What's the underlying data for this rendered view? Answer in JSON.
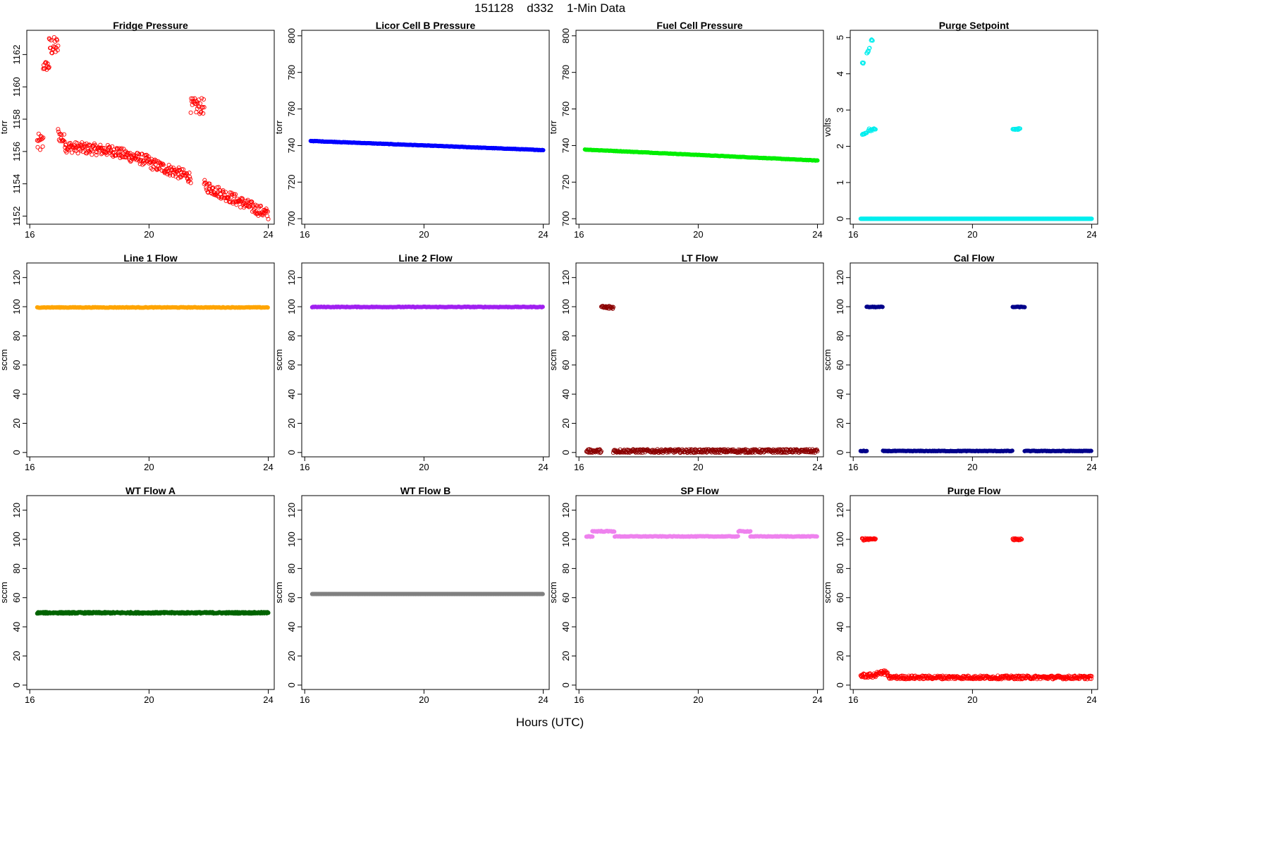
{
  "page": {
    "title": "151128    d332    1-Min Data",
    "x_axis_label": "Hours (UTC)"
  },
  "chart_data": [
    {
      "type": "scatter",
      "title": "Fridge Pressure",
      "ylabel": "torr",
      "color": "#ff0000",
      "filled": false,
      "xlim": [
        15.9,
        24.2
      ],
      "ylim": [
        1151.5,
        1163.5
      ],
      "xticks": [
        16,
        20,
        24
      ],
      "yticks": [
        1152,
        1154,
        1156,
        1158,
        1160,
        1162
      ],
      "segments": [
        {
          "x0": 16.25,
          "x1": 16.45,
          "y": 1156.5,
          "noise": 0.6
        },
        {
          "x0": 16.45,
          "x1": 16.65,
          "y": 1161.3,
          "noise": 0.3
        },
        {
          "x0": 16.65,
          "x1": 16.95,
          "y": 1162.5,
          "noise": 0.6
        },
        {
          "x0": 16.95,
          "x1": 17.2,
          "y0": 1157.1,
          "y1": 1156.6,
          "noise": 0.4
        },
        {
          "x0": 17.2,
          "x1": 19.0,
          "y0": 1156.3,
          "y1": 1156.0,
          "noise": 0.35
        },
        {
          "x0": 19.0,
          "x1": 20.0,
          "y0": 1155.9,
          "y1": 1155.4,
          "noise": 0.35
        },
        {
          "x0": 20.0,
          "x1": 21.4,
          "y0": 1155.3,
          "y1": 1154.4,
          "noise": 0.35
        },
        {
          "x0": 21.4,
          "x1": 21.85,
          "y": 1158.8,
          "noise": 0.5
        },
        {
          "x0": 21.85,
          "x1": 24.0,
          "y0": 1153.9,
          "y1": 1152.1,
          "noise": 0.35
        }
      ]
    },
    {
      "type": "scatter",
      "title": "Licor Cell B Pressure",
      "ylabel": "torr",
      "color": "#0000ff",
      "filled": true,
      "xlim": [
        15.9,
        24.2
      ],
      "ylim": [
        697,
        803
      ],
      "xticks": [
        16,
        20,
        24
      ],
      "yticks": [
        700,
        720,
        740,
        760,
        780,
        800
      ],
      "segments": [
        {
          "x0": 16.2,
          "x1": 24.0,
          "y0": 742.5,
          "y1": 737.5,
          "noise": 0.1
        }
      ]
    },
    {
      "type": "scatter",
      "title": "Fuel Cell Pressure",
      "ylabel": "torr",
      "color": "#00ee00",
      "filled": true,
      "xlim": [
        15.9,
        24.2
      ],
      "ylim": [
        697,
        803
      ],
      "xticks": [
        16,
        20,
        24
      ],
      "yticks": [
        700,
        720,
        740,
        760,
        780,
        800
      ],
      "segments": [
        {
          "x0": 16.2,
          "x1": 24.0,
          "y0": 737.8,
          "y1": 731.8,
          "noise": 0.1
        }
      ]
    },
    {
      "type": "scatter",
      "title": "Purge Setpoint",
      "ylabel": "volts",
      "color": "#00eeee",
      "filled": false,
      "xlim": [
        15.9,
        24.2
      ],
      "ylim": [
        -0.15,
        5.2
      ],
      "xticks": [
        16,
        20,
        24
      ],
      "yticks": [
        0,
        1,
        2,
        3,
        4,
        5
      ],
      "segments": [
        {
          "x0": 16.25,
          "x1": 16.6,
          "y": 0,
          "noise": 0
        },
        {
          "x0": 16.6,
          "x1": 24.0,
          "y": 0,
          "noise": 0
        },
        {
          "x0": 16.3,
          "x1": 16.35,
          "y": 4.3,
          "noise": 0.02
        },
        {
          "x0": 16.45,
          "x1": 16.55,
          "y0": 4.55,
          "y1": 4.7,
          "noise": 0.03
        },
        {
          "x0": 16.6,
          "x1": 16.65,
          "y": 4.93,
          "noise": 0.03
        },
        {
          "x0": 16.3,
          "x1": 16.45,
          "y": 2.35,
          "noise": 0.03
        },
        {
          "x0": 16.5,
          "x1": 16.75,
          "y": 2.45,
          "noise": 0.04
        },
        {
          "x0": 21.35,
          "x1": 21.6,
          "y": 2.47,
          "noise": 0.03
        }
      ]
    },
    {
      "type": "scatter",
      "title": "Line 1 Flow",
      "ylabel": "sccm",
      "color": "#ffa500",
      "filled": true,
      "xlim": [
        15.9,
        24.2
      ],
      "ylim": [
        -3,
        130
      ],
      "xticks": [
        16,
        20,
        24
      ],
      "yticks": [
        0,
        20,
        40,
        60,
        80,
        100,
        120
      ],
      "segments": [
        {
          "x0": 16.25,
          "x1": 24.0,
          "y": 99.5,
          "noise": 0.2
        }
      ]
    },
    {
      "type": "scatter",
      "title": "Line 2 Flow",
      "ylabel": "sccm",
      "color": "#a020f0",
      "filled": true,
      "xlim": [
        15.9,
        24.2
      ],
      "ylim": [
        -3,
        130
      ],
      "xticks": [
        16,
        20,
        24
      ],
      "yticks": [
        0,
        20,
        40,
        60,
        80,
        100,
        120
      ],
      "segments": [
        {
          "x0": 16.25,
          "x1": 24.0,
          "y": 99.8,
          "noise": 0.2
        }
      ]
    },
    {
      "type": "scatter",
      "title": "LT Flow",
      "ylabel": "sccm",
      "color": "#8b0000",
      "filled": false,
      "xlim": [
        15.9,
        24.2
      ],
      "ylim": [
        -3,
        130
      ],
      "xticks": [
        16,
        20,
        24
      ],
      "yticks": [
        0,
        20,
        40,
        60,
        80,
        100,
        120
      ],
      "segments": [
        {
          "x0": 16.25,
          "x1": 16.75,
          "y": 1,
          "noise": 1.2
        },
        {
          "x0": 16.75,
          "x1": 17.15,
          "y": 99.5,
          "noise": 1.2
        },
        {
          "x0": 17.15,
          "x1": 24.0,
          "y": 1,
          "noise": 1.2
        }
      ]
    },
    {
      "type": "scatter",
      "title": "Cal Flow",
      "ylabel": "sccm",
      "color": "#00008b",
      "filled": true,
      "xlim": [
        15.9,
        24.2
      ],
      "ylim": [
        -3,
        130
      ],
      "xticks": [
        16,
        20,
        24
      ],
      "yticks": [
        0,
        20,
        40,
        60,
        80,
        100,
        120
      ],
      "segments": [
        {
          "x0": 16.25,
          "x1": 16.45,
          "y": 1,
          "noise": 0.2
        },
        {
          "x0": 16.45,
          "x1": 17.0,
          "y": 99.8,
          "noise": 0.2
        },
        {
          "x0": 17.0,
          "x1": 21.35,
          "y": 1,
          "noise": 0.2
        },
        {
          "x0": 21.35,
          "x1": 21.75,
          "y": 99.8,
          "noise": 0.2
        },
        {
          "x0": 21.75,
          "x1": 24.0,
          "y": 1,
          "noise": 0.2
        }
      ]
    },
    {
      "type": "scatter",
      "title": "WT Flow A",
      "ylabel": "sccm",
      "color": "#006400",
      "filled": true,
      "xlim": [
        15.9,
        24.2
      ],
      "ylim": [
        -3,
        130
      ],
      "xticks": [
        16,
        20,
        24
      ],
      "yticks": [
        0,
        20,
        40,
        60,
        80,
        100,
        120
      ],
      "segments": [
        {
          "x0": 16.25,
          "x1": 24.0,
          "y": 49.6,
          "noise": 0.5
        }
      ]
    },
    {
      "type": "scatter",
      "title": "WT Flow B",
      "ylabel": "sccm",
      "color": "#808080",
      "filled": true,
      "xlim": [
        15.9,
        24.2
      ],
      "ylim": [
        -3,
        130
      ],
      "xticks": [
        16,
        20,
        24
      ],
      "yticks": [
        0,
        20,
        40,
        60,
        80,
        100,
        120
      ],
      "segments": [
        {
          "x0": 16.25,
          "x1": 24.0,
          "y": 62.5,
          "noise": 0
        }
      ]
    },
    {
      "type": "scatter",
      "title": "SP Flow",
      "ylabel": "sccm",
      "color": "#ee82ee",
      "filled": true,
      "xlim": [
        15.9,
        24.2
      ],
      "ylim": [
        -3,
        130
      ],
      "xticks": [
        16,
        20,
        24
      ],
      "yticks": [
        0,
        20,
        40,
        60,
        80,
        100,
        120
      ],
      "segments": [
        {
          "x0": 16.25,
          "x1": 16.45,
          "y": 102,
          "noise": 0.3
        },
        {
          "x0": 16.45,
          "x1": 17.2,
          "y": 105.5,
          "noise": 0.3
        },
        {
          "x0": 17.2,
          "x1": 21.35,
          "y": 102,
          "noise": 0.2
        },
        {
          "x0": 21.35,
          "x1": 21.75,
          "y": 105.5,
          "noise": 0.3
        },
        {
          "x0": 21.75,
          "x1": 24.0,
          "y": 102,
          "noise": 0.2
        }
      ]
    },
    {
      "type": "scatter",
      "title": "Purge Flow",
      "ylabel": "sccm",
      "color": "#ff0000",
      "filled": false,
      "xlim": [
        15.9,
        24.2
      ],
      "ylim": [
        -3,
        130
      ],
      "xticks": [
        16,
        20,
        24
      ],
      "yticks": [
        0,
        20,
        40,
        60,
        80,
        100,
        120
      ],
      "segments": [
        {
          "x0": 16.25,
          "x1": 16.75,
          "y": 6.5,
          "noise": 1.5
        },
        {
          "x0": 16.3,
          "x1": 16.75,
          "y": 100,
          "noise": 0.8
        },
        {
          "x0": 16.75,
          "x1": 17.15,
          "y": 8.5,
          "noise": 1.5
        },
        {
          "x0": 17.15,
          "x1": 24.0,
          "y": 5.3,
          "noise": 1.2
        },
        {
          "x0": 21.35,
          "x1": 21.65,
          "y": 100,
          "noise": 0.6
        }
      ]
    }
  ]
}
